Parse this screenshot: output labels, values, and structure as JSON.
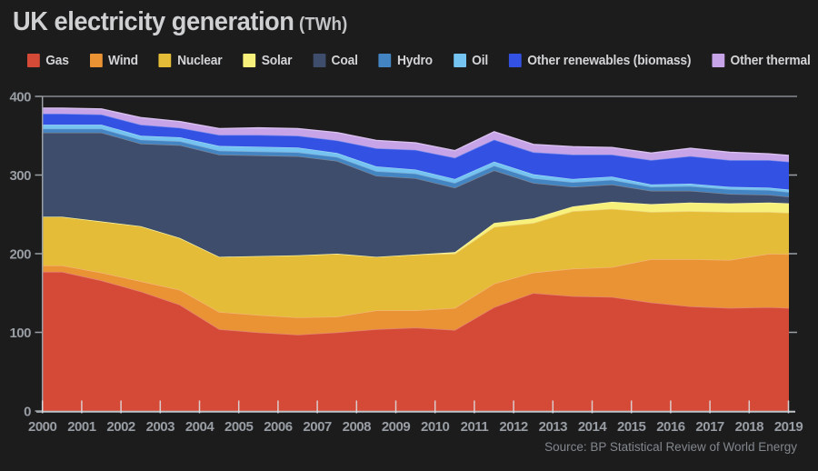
{
  "header": {
    "title": "UK electricity generation",
    "unit": "(TWh)"
  },
  "source": "Source: BP Statistical Review of World Energy",
  "colors": {
    "background": "#1c1c1c",
    "title_text": "#cfd0d2",
    "legend_text": "#d2d3d5",
    "axis_line": "#9aa0a6",
    "x_axis_line": "#bfc4c9",
    "top_gridline": "#85898e",
    "tick_label": "#989da4",
    "source_text": "#82878d"
  },
  "chart_data": {
    "type": "area",
    "stacked": true,
    "title": "UK electricity generation (TWh)",
    "xlabel": "",
    "ylabel": "",
    "xlim": [
      2000,
      2019
    ],
    "ylim": [
      0,
      400
    ],
    "y_ticks": [
      0,
      100,
      200,
      300,
      400
    ],
    "grid": "horizontal line at 400 only",
    "legend_position": "top",
    "x": [
      2000,
      2001,
      2002,
      2003,
      2004,
      2005,
      2006,
      2007,
      2008,
      2009,
      2010,
      2011,
      2012,
      2013,
      2014,
      2015,
      2016,
      2017,
      2018,
      2019
    ],
    "series": [
      {
        "key": "gas",
        "name": "Gas",
        "color": "#d54a36",
        "values": [
          177,
          166,
          152,
          135,
          104,
          100,
          97,
          100,
          104,
          106,
          103,
          132,
          150,
          146,
          145,
          138,
          133,
          131,
          132,
          130
        ]
      },
      {
        "key": "wind",
        "name": "Wind",
        "color": "#ea9335",
        "values": [
          8,
          10,
          13,
          19,
          22,
          22,
          22,
          20,
          24,
          22,
          28,
          30,
          26,
          35,
          38,
          55,
          60,
          61,
          68,
          69
        ]
      },
      {
        "key": "nuclear",
        "name": "Nuclear",
        "color": "#e5bc37",
        "values": [
          62,
          65,
          70,
          66,
          70,
          75,
          79,
          80,
          68,
          71,
          69,
          72,
          63,
          73,
          74,
          60,
          61,
          61,
          53,
          52
        ]
      },
      {
        "key": "solar",
        "name": "Solar",
        "color": "#f7f07a",
        "values": [
          0,
          0,
          0,
          0,
          0,
          0,
          0,
          0,
          0,
          0,
          2,
          5,
          6,
          6,
          9,
          10,
          11,
          11,
          12,
          12
        ]
      },
      {
        "key": "coal",
        "name": "Coal",
        "color": "#3d4d6b",
        "values": [
          107,
          113,
          105,
          118,
          130,
          128,
          126,
          118,
          103,
          97,
          82,
          67,
          45,
          25,
          22,
          17,
          15,
          12,
          10,
          7
        ]
      },
      {
        "key": "hydro",
        "name": "Hydro",
        "color": "#4384c2",
        "values": [
          5,
          5,
          5,
          5,
          5,
          5,
          5,
          5,
          6,
          6,
          6,
          6,
          6,
          6,
          6,
          5,
          6,
          6,
          6,
          6
        ]
      },
      {
        "key": "oil",
        "name": "Oil",
        "color": "#74c3f0",
        "values": [
          5,
          5,
          5,
          5,
          6,
          6,
          6,
          5,
          6,
          5,
          5,
          5,
          5,
          4,
          4,
          3,
          3,
          3,
          3,
          3
        ]
      },
      {
        "key": "other-renewables",
        "name": "Other renewables (biomass)",
        "color": "#3351e2",
        "values": [
          14,
          13,
          14,
          12,
          14,
          15,
          15,
          16,
          23,
          25,
          27,
          28,
          28,
          31,
          28,
          31,
          35,
          34,
          35,
          36
        ]
      },
      {
        "key": "other-thermal",
        "name": "Other thermal",
        "color": "#c7a3e8",
        "values": [
          7,
          7,
          9,
          8,
          8,
          9,
          9,
          10,
          10,
          9,
          9,
          10,
          10,
          10,
          9,
          9,
          10,
          10,
          8,
          8
        ]
      }
    ]
  }
}
